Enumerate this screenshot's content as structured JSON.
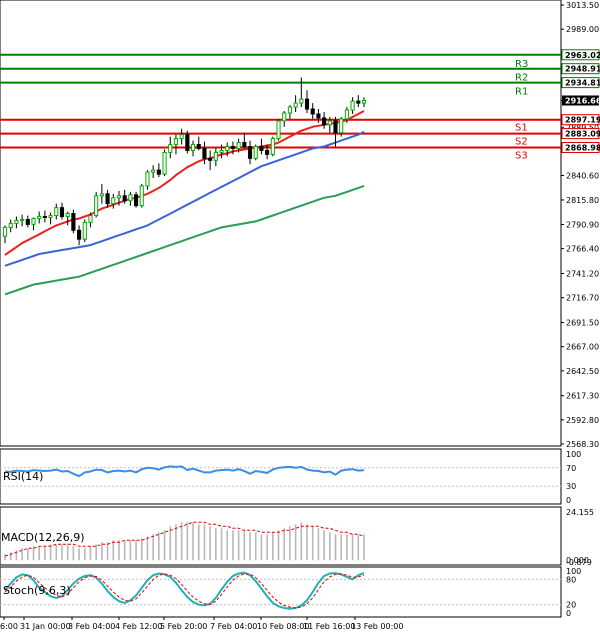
{
  "chart_data": {
    "type": "candlestick",
    "main": {
      "y_ticks": [
        "3013.50",
        "2989.00",
        "2963.02",
        "2948.91",
        "2934.81",
        "2916.66",
        "2897.19",
        "2889.50",
        "2883.09",
        "2868.98",
        "2840.60",
        "2815.80",
        "2790.90",
        "2766.40",
        "2741.20",
        "2716.70",
        "2691.50",
        "2667.00",
        "2642.50",
        "2617.30",
        "2592.80",
        "2568.30"
      ],
      "ylim": [
        2568.3,
        3013.5
      ],
      "current_price": "2916.66",
      "pivots": [
        {
          "label": "R3",
          "value": 2963.02,
          "text": "2963.02",
          "kind": "resistance"
        },
        {
          "label": "R2",
          "value": 2948.91,
          "text": "2948.91",
          "kind": "resistance"
        },
        {
          "label": "R1",
          "value": 2934.81,
          "text": "2934.81",
          "kind": "resistance"
        },
        {
          "label": "S1",
          "value": 2897.19,
          "text": "2897.19",
          "kind": "support"
        },
        {
          "label": "S2",
          "value": 2883.09,
          "text": "2883.09",
          "kind": "support"
        },
        {
          "label": "S3",
          "value": 2868.98,
          "text": "2868.98",
          "kind": "support"
        }
      ],
      "candles": [
        [
          2779.0,
          2790.0,
          2772.0,
          2788.0
        ],
        [
          2788.0,
          2796.0,
          2783.0,
          2792.0
        ],
        [
          2792.0,
          2799.0,
          2787.0,
          2795.0
        ],
        [
          2795.0,
          2801.0,
          2789.0,
          2796.0
        ],
        [
          2796.0,
          2800.0,
          2788.0,
          2791.0
        ],
        [
          2791.0,
          2798.0,
          2785.0,
          2797.0
        ],
        [
          2797.0,
          2804.0,
          2792.0,
          2799.0
        ],
        [
          2799.0,
          2805.0,
          2793.0,
          2798.0
        ],
        [
          2798.0,
          2803.0,
          2791.0,
          2800.0
        ],
        [
          2800.0,
          2812.0,
          2796.0,
          2808.0
        ],
        [
          2808.0,
          2813.0,
          2796.0,
          2799.0
        ],
        [
          2799.0,
          2804.0,
          2790.0,
          2802.0
        ],
        [
          2802.0,
          2806.0,
          2782.0,
          2785.0
        ],
        [
          2785.0,
          2790.0,
          2770.0,
          2776.0
        ],
        [
          2776.0,
          2796.0,
          2773.0,
          2793.0
        ],
        [
          2793.0,
          2803.0,
          2788.0,
          2800.0
        ],
        [
          2800.0,
          2824.0,
          2798.0,
          2820.0
        ],
        [
          2820.0,
          2832.0,
          2812.0,
          2822.0
        ],
        [
          2822.0,
          2826.0,
          2808.0,
          2812.0
        ],
        [
          2812.0,
          2822.0,
          2807.0,
          2818.0
        ],
        [
          2818.0,
          2825.0,
          2810.0,
          2820.0
        ],
        [
          2820.0,
          2826.0,
          2812.0,
          2815.0
        ],
        [
          2815.0,
          2824.0,
          2810.0,
          2821.0
        ],
        [
          2821.0,
          2824.0,
          2808.0,
          2810.0
        ],
        [
          2810.0,
          2832.0,
          2808.0,
          2830.0
        ],
        [
          2830.0,
          2846.0,
          2826.0,
          2844.0
        ],
        [
          2844.0,
          2851.0,
          2838.0,
          2846.0
        ],
        [
          2846.0,
          2853.0,
          2839.0,
          2842.0
        ],
        [
          2842.0,
          2867.0,
          2840.0,
          2864.0
        ],
        [
          2864.0,
          2880.0,
          2858.0,
          2872.0
        ],
        [
          2872.0,
          2882.0,
          2862.0,
          2878.0
        ],
        [
          2878.0,
          2888.0,
          2872.0,
          2882.0
        ],
        [
          2882.0,
          2886.0,
          2863.0,
          2866.0
        ],
        [
          2866.0,
          2876.0,
          2860.0,
          2872.0
        ],
        [
          2872.0,
          2880.0,
          2866.0,
          2868.0
        ],
        [
          2868.0,
          2875.0,
          2852.0,
          2858.0
        ],
        [
          2858.0,
          2866.0,
          2846.0,
          2856.0
        ],
        [
          2856.0,
          2868.0,
          2850.0,
          2864.0
        ],
        [
          2864.0,
          2872.0,
          2858.0,
          2866.0
        ],
        [
          2866.0,
          2874.0,
          2860.0,
          2870.0
        ],
        [
          2870.0,
          2875.0,
          2862.0,
          2868.0
        ],
        [
          2868.0,
          2878.0,
          2864.0,
          2874.0
        ],
        [
          2874.0,
          2884.0,
          2868.0,
          2870.0
        ],
        [
          2870.0,
          2876.0,
          2852.0,
          2858.0
        ],
        [
          2858.0,
          2872.0,
          2856.0,
          2870.0
        ],
        [
          2870.0,
          2878.0,
          2862.0,
          2866.0
        ],
        [
          2866.0,
          2872.0,
          2857.0,
          2862.0
        ],
        [
          2862.0,
          2880.0,
          2860.0,
          2878.0
        ],
        [
          2878.0,
          2898.0,
          2876.0,
          2896.0
        ],
        [
          2896.0,
          2906.0,
          2890.0,
          2904.0
        ],
        [
          2904.0,
          2912.0,
          2898.0,
          2910.0
        ],
        [
          2910.0,
          2922.0,
          2905.0,
          2914.0
        ],
        [
          2914.0,
          2940.0,
          2910.0,
          2918.0
        ],
        [
          2918.0,
          2927.0,
          2904.0,
          2908.0
        ],
        [
          2908.0,
          2914.0,
          2898.0,
          2903.0
        ],
        [
          2903.0,
          2908.0,
          2894.0,
          2899.0
        ],
        [
          2899.0,
          2905.0,
          2888.0,
          2892.0
        ],
        [
          2892.0,
          2900.0,
          2884.0,
          2896.0
        ],
        [
          2896.0,
          2900.0,
          2870.0,
          2884.0
        ],
        [
          2884.0,
          2900.0,
          2880.0,
          2898.0
        ],
        [
          2898.0,
          2910.0,
          2894.0,
          2907.0
        ],
        [
          2907.0,
          2920.0,
          2903.0,
          2916.0
        ],
        [
          2916.0,
          2922.0,
          2910.0,
          2914.0
        ],
        [
          2914.0,
          2920.0,
          2910.0,
          2916.66
        ]
      ],
      "ma_red": [
        2760,
        2764,
        2768,
        2772,
        2775,
        2778,
        2781,
        2784,
        2787,
        2790,
        2792,
        2794,
        2796,
        2797,
        2799,
        2801,
        2804,
        2807,
        2809,
        2811,
        2813,
        2815,
        2817,
        2818,
        2820,
        2822,
        2825,
        2828,
        2832,
        2836,
        2841,
        2845,
        2849,
        2852,
        2855,
        2857,
        2858,
        2860,
        2862,
        2863,
        2865,
        2866,
        2867,
        2868,
        2869,
        2870,
        2871,
        2872,
        2874,
        2877,
        2880,
        2883,
        2886,
        2888,
        2890,
        2891,
        2892,
        2893,
        2894,
        2895,
        2897,
        2900,
        2903,
        2906
      ],
      "ma_blue": [
        2749,
        2751,
        2753,
        2755,
        2757,
        2759,
        2761,
        2762,
        2763,
        2764,
        2765,
        2766,
        2767,
        2768,
        2769,
        2770,
        2772,
        2774,
        2776,
        2778,
        2780,
        2782,
        2784,
        2786,
        2788,
        2790,
        2793,
        2796,
        2799,
        2802,
        2805,
        2808,
        2811,
        2814,
        2817,
        2820,
        2823,
        2826,
        2829,
        2832,
        2835,
        2838,
        2841,
        2844,
        2847,
        2850,
        2852,
        2854,
        2856,
        2858,
        2860,
        2862,
        2864,
        2866,
        2868,
        2869,
        2870,
        2872,
        2874,
        2876,
        2878,
        2880,
        2882,
        2885
      ],
      "ma_green": [
        2720,
        2722,
        2724,
        2726,
        2728,
        2730,
        2731,
        2732,
        2733,
        2734,
        2735,
        2736,
        2737,
        2738,
        2740,
        2742,
        2744,
        2746,
        2748,
        2750,
        2752,
        2754,
        2756,
        2758,
        2760,
        2762,
        2764,
        2766,
        2768,
        2770,
        2772,
        2774,
        2776,
        2778,
        2780,
        2782,
        2784,
        2786,
        2788,
        2789,
        2790,
        2791,
        2792,
        2793,
        2794,
        2796,
        2798,
        2800,
        2802,
        2804,
        2806,
        2808,
        2810,
        2812,
        2814,
        2816,
        2818,
        2819,
        2820,
        2822,
        2824,
        2826,
        2828,
        2830
      ]
    },
    "rsi": {
      "label": "RSI(14)",
      "y_ticks": [
        "100",
        "70",
        "30",
        "0"
      ],
      "ylim": [
        0,
        100
      ],
      "values": [
        62,
        61,
        64,
        63,
        62,
        65,
        64,
        63,
        64,
        66,
        62,
        63,
        57,
        52,
        60,
        62,
        66,
        65,
        60,
        63,
        64,
        62,
        64,
        60,
        67,
        70,
        69,
        66,
        71,
        73,
        72,
        73,
        65,
        68,
        64,
        60,
        60,
        64,
        65,
        66,
        64,
        67,
        63,
        57,
        63,
        61,
        59,
        66,
        70,
        71,
        72,
        70,
        72,
        66,
        64,
        63,
        60,
        62,
        55,
        64,
        66,
        67,
        64,
        65
      ]
    },
    "macd": {
      "label": "MACD(12,26,9)",
      "y_ticks": [
        "24.155",
        "0.000",
        "-0.879"
      ],
      "ylim": [
        -0.879,
        24.155
      ],
      "hist": [
        3,
        4,
        5,
        6,
        6,
        7,
        7,
        7,
        8,
        8,
        8,
        8,
        7,
        6,
        6,
        7,
        8,
        9,
        9,
        10,
        10,
        10,
        10,
        10,
        11,
        12,
        13,
        14,
        15,
        17,
        18,
        19,
        19,
        19,
        18,
        18,
        17,
        16,
        16,
        15,
        15,
        15,
        15,
        14,
        14,
        13,
        13,
        14,
        15,
        16,
        17,
        18,
        19,
        18,
        17,
        16,
        15,
        14,
        13,
        13,
        13,
        13,
        13,
        13
      ],
      "signal": [
        2,
        3,
        4,
        5,
        6,
        6,
        7,
        7,
        7,
        8,
        8,
        8,
        8,
        7,
        7,
        7,
        7,
        8,
        8,
        9,
        9,
        10,
        10,
        10,
        10,
        11,
        12,
        13,
        14,
        15,
        16,
        17,
        18,
        19,
        19,
        19,
        18,
        18,
        17,
        17,
        16,
        16,
        15,
        15,
        15,
        14,
        14,
        14,
        14,
        15,
        15,
        16,
        17,
        17,
        17,
        17,
        16,
        16,
        15,
        14,
        14,
        13,
        13,
        12
      ]
    },
    "stoch": {
      "label": "Stoch(9,6,3)",
      "y_ticks": [
        "100",
        "80",
        "20",
        "0"
      ],
      "ylim": [
        0,
        100
      ],
      "k": [
        55,
        70,
        85,
        92,
        90,
        78,
        60,
        50,
        40,
        36,
        40,
        55,
        70,
        82,
        88,
        90,
        84,
        70,
        52,
        38,
        28,
        24,
        30,
        42,
        60,
        78,
        90,
        94,
        92,
        86,
        72,
        54,
        38,
        26,
        20,
        18,
        22,
        36,
        56,
        74,
        88,
        94,
        96,
        90,
        76,
        58,
        40,
        24,
        16,
        12,
        10,
        12,
        18,
        30,
        50,
        72,
        88,
        94,
        95,
        92,
        86,
        80,
        90,
        95
      ],
      "d": [
        50,
        62,
        76,
        86,
        90,
        85,
        72,
        60,
        50,
        42,
        38,
        46,
        60,
        74,
        84,
        88,
        87,
        78,
        64,
        50,
        38,
        30,
        28,
        34,
        48,
        64,
        80,
        90,
        93,
        90,
        82,
        68,
        52,
        38,
        28,
        22,
        20,
        28,
        44,
        62,
        78,
        88,
        93,
        93,
        84,
        70,
        54,
        38,
        26,
        18,
        14,
        12,
        14,
        22,
        36,
        56,
        74,
        86,
        92,
        93,
        90,
        85,
        86,
        90
      ]
    },
    "x_ticks": [
      "6:00",
      "31 Jan 00:00",
      "3 Feb 04:00",
      "4 Feb 12:00",
      "5 Feb 20:00",
      "7 Feb 04:00",
      "10 Feb 08:00",
      "11 Feb 16:00",
      "13 Feb 00:00"
    ]
  },
  "colors": {
    "bull": "#00b000",
    "bear": "#000000",
    "ma_red": "#e8231d",
    "ma_blue": "#3c63d6",
    "ma_green": "#2a9d57",
    "resistance": "#008000",
    "support": "#e00000",
    "rsi_line": "#3a8ee6",
    "macd_hist": "#b8b8b8",
    "macd_signal": "#e00000",
    "stoch_k": "#20b2b2",
    "stoch_d": "#e00000"
  }
}
